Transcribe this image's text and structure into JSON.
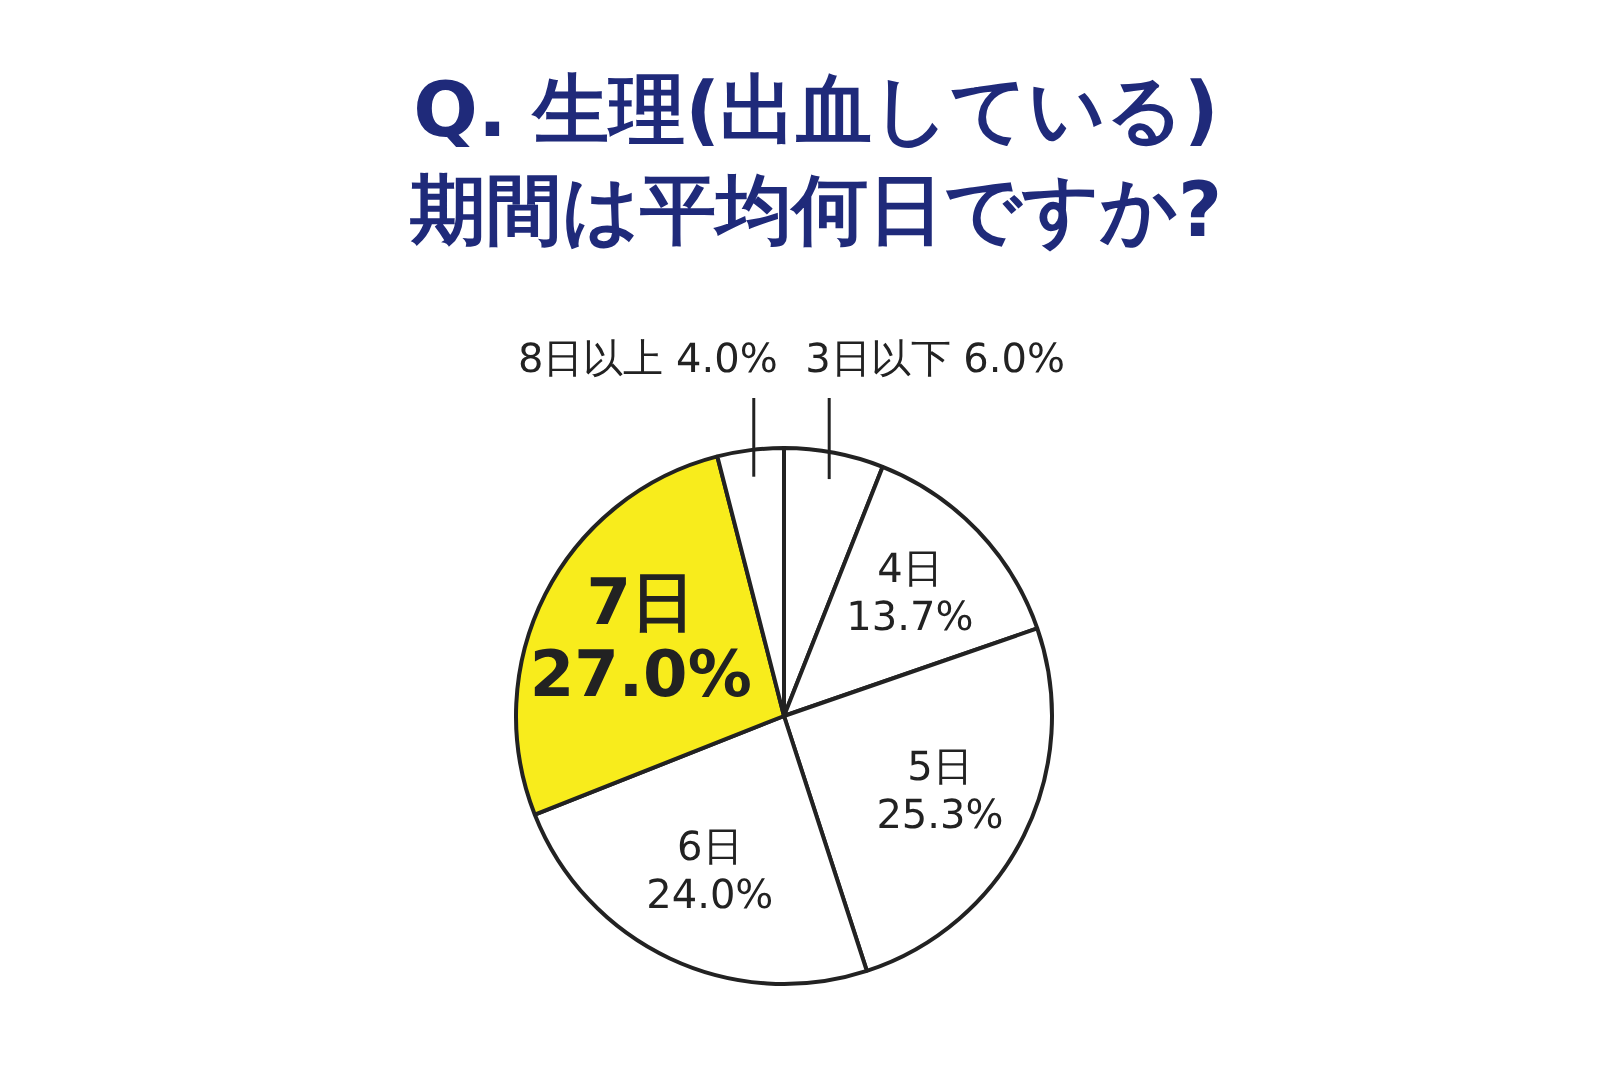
{
  "chart_data": {
    "type": "pie",
    "title": "Q. 生理(出血している)期間は平均何日ですか?",
    "categories": [
      "3日以下",
      "4日",
      "5日",
      "6日",
      "7日",
      "8日以上"
    ],
    "values": [
      6.0,
      13.7,
      25.3,
      24.0,
      27.0,
      4.0
    ],
    "value_labels": [
      "6.0%",
      "13.7%",
      "25.3%",
      "24.0%",
      "27.0%",
      "4.0%"
    ],
    "colors": [
      "#ffffff",
      "#ffffff",
      "#ffffff",
      "#ffffff",
      "#f8ec1c",
      "#ffffff"
    ],
    "legend": false
  }
}
